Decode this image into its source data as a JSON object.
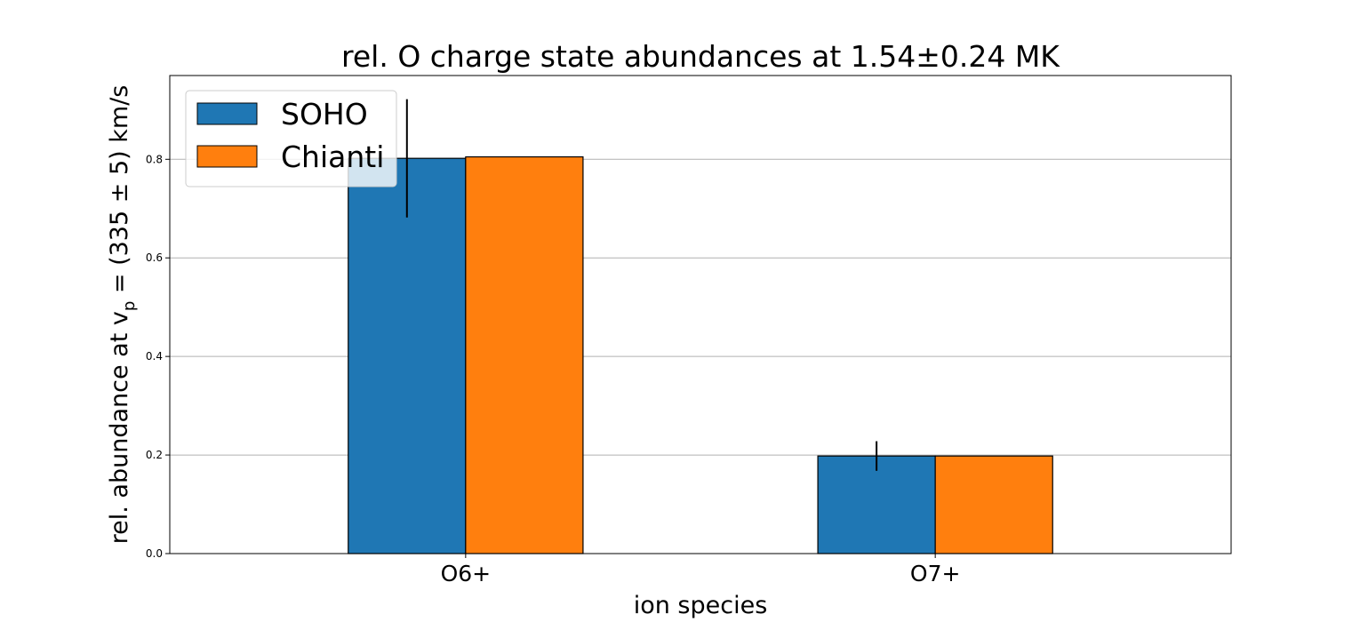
{
  "chart_data": {
    "type": "bar",
    "title": "rel. O charge state abundances at 1.54±0.24 MK",
    "xlabel": "ion species",
    "ylabel_prefix": "rel. abundance at v",
    "ylabel_sub": "p",
    "ylabel_suffix": " = (335 ± 5) km/s",
    "categories": [
      "O6+",
      "O7+"
    ],
    "series": [
      {
        "name": "SOHO",
        "color": "#1f77b4",
        "values": [
          0.802,
          0.198
        ],
        "errors": [
          0.12,
          0.03
        ]
      },
      {
        "name": "Chianti",
        "color": "#ff7f0e",
        "values": [
          0.805,
          0.198
        ]
      }
    ],
    "ylim": [
      0,
      0.97
    ],
    "yticks": [
      "0.0",
      "0.2",
      "0.4",
      "0.6",
      "0.8"
    ],
    "grid": "y",
    "legend": "top-left"
  }
}
